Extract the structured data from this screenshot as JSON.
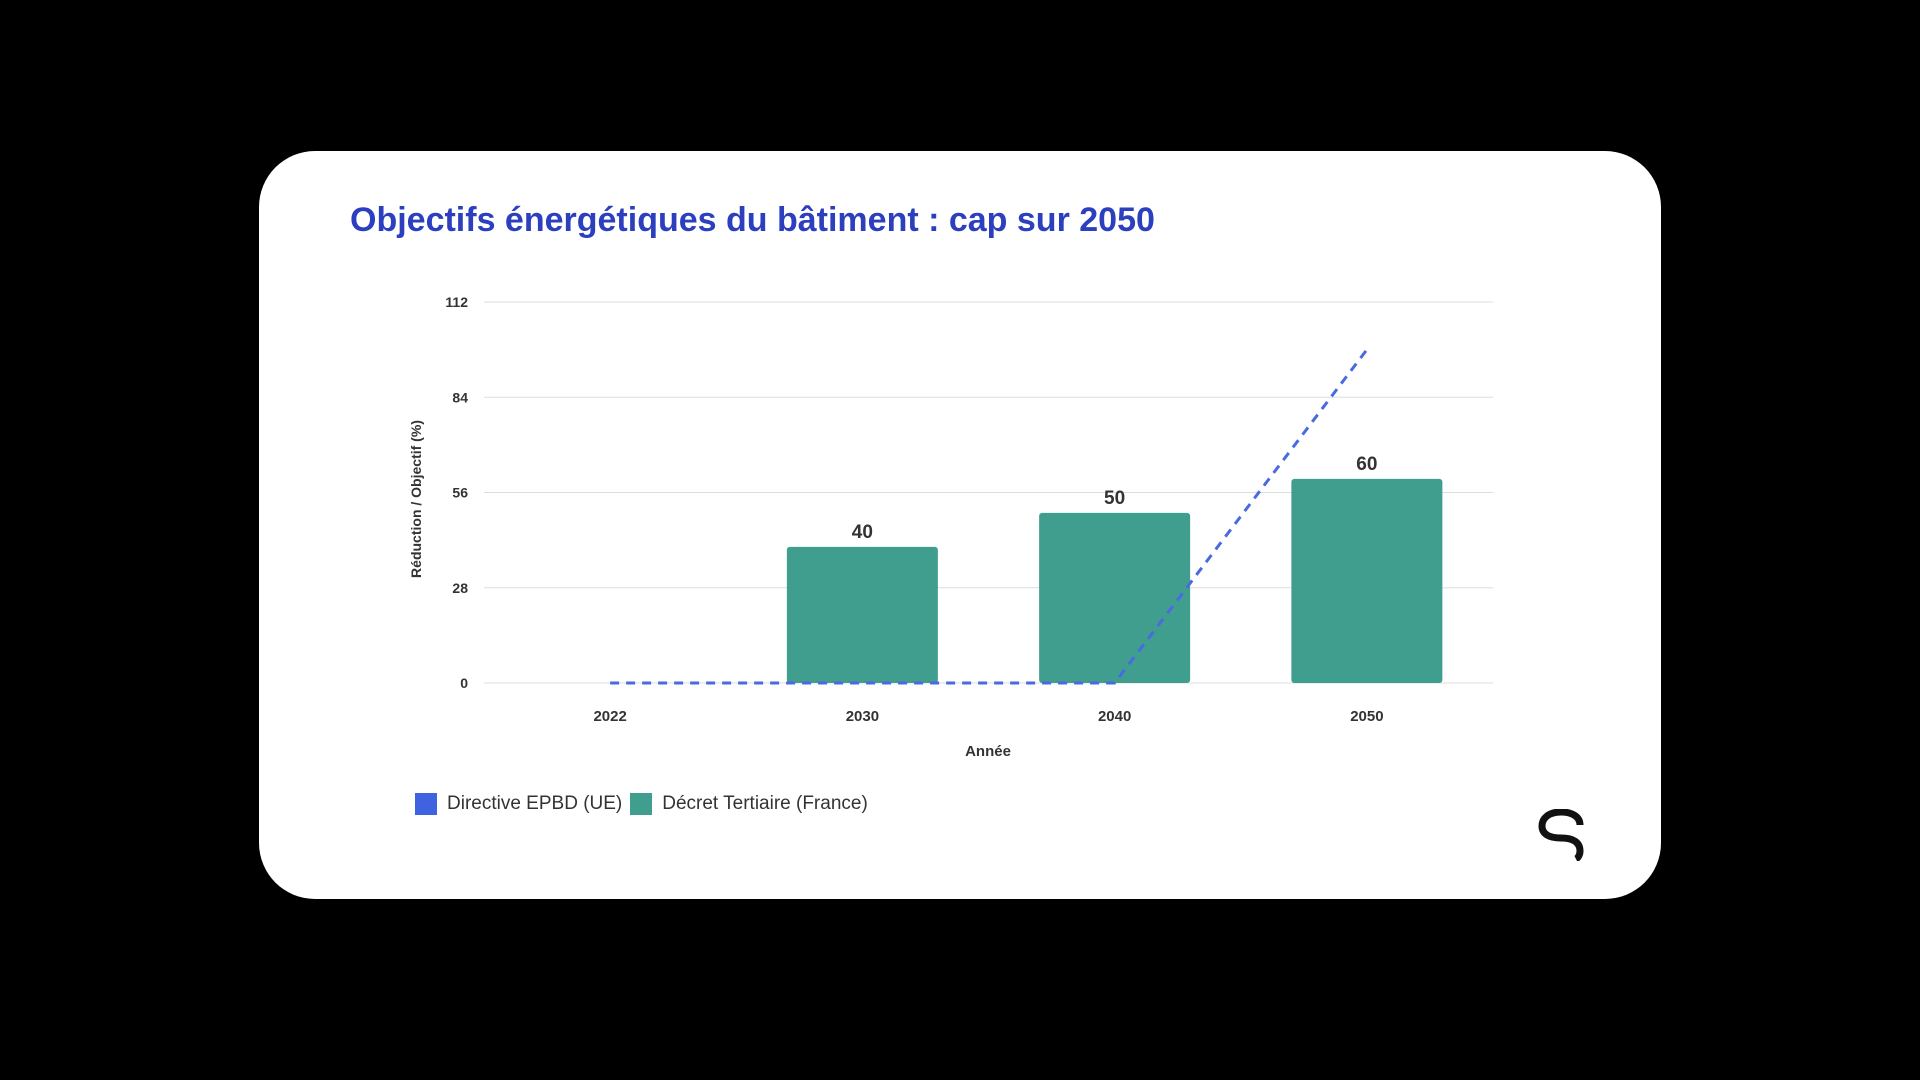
{
  "title": "Objectifs énergétiques du bâtiment : cap sur 2050",
  "chart_data": {
    "type": "bar",
    "title": "Objectifs énergétiques du bâtiment : cap sur 2050",
    "xlabel": "Année",
    "ylabel": "Réduction / Objectif (%)",
    "ylim": [
      0,
      112
    ],
    "yticks": [
      0,
      28,
      56,
      84,
      112
    ],
    "categories": [
      "2022",
      "2030",
      "2040",
      "2050"
    ],
    "grid": true,
    "legend_position": "bottom-left",
    "series": [
      {
        "name": "Directive EPBD (UE)",
        "type": "line",
        "style": "dashed",
        "color": "#4a6ae0",
        "values": [
          0,
          0,
          0,
          98
        ]
      },
      {
        "name": "Décret Tertiaire (France)",
        "type": "bar",
        "color": "#409e8e",
        "values": [
          null,
          40,
          50,
          60
        ],
        "data_labels": [
          "",
          "40",
          "50",
          "60"
        ]
      }
    ]
  },
  "legend": {
    "items": [
      {
        "label": "Directive EPBD (UE)",
        "color": "#3f63e0"
      },
      {
        "label": "Décret Tertiaire (France)",
        "color": "#409e8e"
      }
    ]
  },
  "logo": {
    "icon": "brand-logo-icon"
  }
}
